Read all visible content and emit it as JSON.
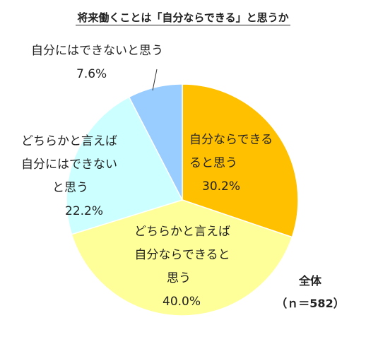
{
  "chart_data": {
    "type": "pie",
    "title": "将来働くことは「自分ならできる」と思うか",
    "slices": [
      {
        "label": "自分ならできると思う",
        "label_lines": [
          "自分ならできる",
          "ると思う"
        ],
        "value": 30.2,
        "value_text": "30.2%",
        "color": "#ffc000"
      },
      {
        "label": "どちらかと言えば自分ならできると思う",
        "label_lines": [
          "どちらかと言えば",
          "自分ならできると",
          "思う"
        ],
        "value": 40.0,
        "value_text": "40.0%",
        "color": "#ffff99"
      },
      {
        "label": "どちらかと言えば自分にはできないと思う",
        "label_lines": [
          "どちらかと言えば",
          "自分にはできない",
          "と思う"
        ],
        "value": 22.2,
        "value_text": "22.2%",
        "color": "#ccffff"
      },
      {
        "label": "自分にはできないと思う",
        "label_lines": [
          "自分にはできないと思う"
        ],
        "value": 7.6,
        "value_text": "7.6%",
        "color": "#99ccff"
      }
    ],
    "start_angle_deg": 0,
    "direction": "clockwise",
    "legend": "none",
    "total": {
      "line1": "全体",
      "line2": "（ｎ＝582）"
    }
  }
}
